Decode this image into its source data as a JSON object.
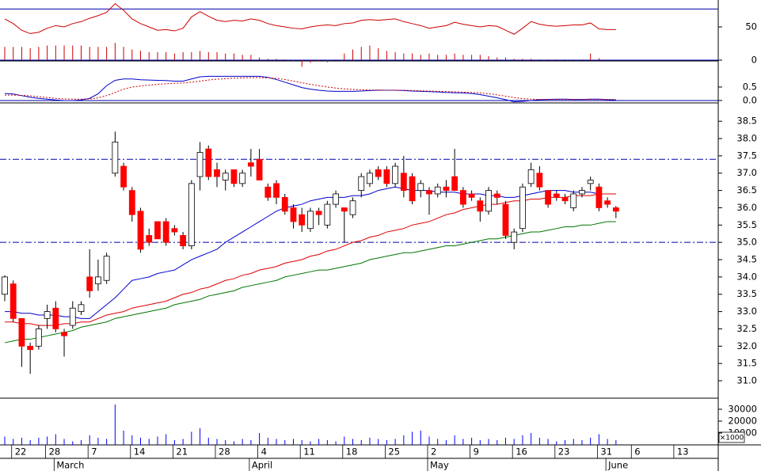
{
  "chart_data": {
    "type": "candlestick",
    "categories": [
      null,
      "22",
      null,
      null,
      null,
      "28",
      null,
      null,
      null,
      null,
      "7",
      null,
      null,
      null,
      null,
      "14",
      null,
      null,
      null,
      null,
      "21",
      null,
      null,
      null,
      null,
      "28",
      null,
      null,
      null,
      null,
      "4",
      null,
      null,
      null,
      null,
      "11",
      null,
      null,
      null,
      null,
      "18",
      null,
      null,
      null,
      null,
      "25",
      null,
      null,
      null,
      null,
      "2",
      null,
      null,
      null,
      null,
      "9",
      null,
      null,
      null,
      null,
      "16",
      null,
      null,
      null,
      null,
      "23",
      null,
      null,
      null,
      null,
      "31",
      null,
      null,
      null,
      "6",
      null,
      null,
      null,
      null,
      "13"
    ],
    "months": [
      null,
      null,
      null,
      null,
      null,
      null,
      "March",
      null,
      null,
      null,
      null,
      null,
      null,
      null,
      null,
      null,
      null,
      null,
      null,
      null,
      null,
      null,
      null,
      null,
      null,
      null,
      null,
      null,
      null,
      "April",
      null,
      null,
      null,
      null,
      null,
      null,
      null,
      null,
      null,
      null,
      null,
      null,
      null,
      null,
      null,
      null,
      null,
      null,
      null,
      null,
      "May",
      null,
      null,
      null,
      null,
      null,
      null,
      null,
      null,
      null,
      null,
      null,
      null,
      null,
      null,
      null,
      null,
      null,
      null,
      null,
      null,
      "June",
      null,
      null,
      null,
      null,
      null,
      null,
      null,
      null
    ],
    "price": {
      "ylim": [
        30.52,
        39.03
      ],
      "yticks": [
        {
          "value": 31,
          "label": "31.0"
        },
        31.5,
        {
          "value": 32,
          "label": "32.0"
        },
        32.5,
        {
          "value": 33,
          "label": "33.0"
        },
        33.5,
        {
          "value": 34,
          "label": "34.0"
        },
        34.5,
        {
          "value": 35,
          "label": "35.0"
        },
        35.5,
        {
          "value": 36,
          "label": "36.0"
        },
        36.5,
        {
          "value": 37,
          "label": "37.0"
        },
        37.5,
        {
          "value": 38,
          "label": "38.0"
        },
        38.5
      ],
      "levels": [
        37.4,
        35.0
      ],
      "up_color": "#ffffff",
      "down_color": "#ff0000",
      "open": [
        33.5,
        33.8,
        32.8,
        32.0,
        32.0,
        32.8,
        33.1,
        32.4,
        32.6,
        33.0,
        34.0,
        33.8,
        33.9,
        37.0,
        37.2,
        36.5,
        35.9,
        35.2,
        35.6,
        35.6,
        35.4,
        35.2,
        34.9,
        36.9,
        37.7,
        37.1,
        36.8,
        37.1,
        36.7,
        37.3,
        37.4,
        36.6,
        36.7,
        36.3,
        36.0,
        35.8,
        35.4,
        35.9,
        35.5,
        36.1,
        36.0,
        35.8,
        36.5,
        36.7,
        37.1,
        37.1,
        36.7,
        37.0,
        36.9,
        36.5,
        36.5,
        36.4,
        36.6,
        36.9,
        36.5,
        36.4,
        36.2,
        35.9,
        36.4,
        36.1,
        35.0,
        35.4,
        36.7,
        37.0,
        36.5,
        36.4,
        36.3,
        36.0,
        36.4,
        36.7,
        36.6,
        36.2,
        36.0,
        null,
        null,
        null,
        null,
        null,
        null,
        null
      ],
      "high": [
        34.05,
        33.9,
        32.8,
        32.1,
        32.6,
        33.2,
        33.3,
        32.5,
        33.3,
        33.3,
        34.8,
        34.5,
        34.7,
        38.2,
        37.3,
        36.6,
        36.0,
        35.4,
        35.6,
        35.7,
        35.5,
        35.3,
        36.8,
        37.9,
        37.8,
        37.3,
        37.1,
        37.1,
        37.1,
        37.7,
        37.7,
        36.7,
        36.8,
        36.4,
        36.1,
        36.0,
        36.0,
        36.0,
        36.2,
        36.5,
        36.0,
        36.3,
        37.0,
        37.1,
        37.2,
        37.2,
        37.3,
        37.5,
        37.0,
        36.8,
        36.6,
        36.7,
        36.8,
        37.7,
        36.6,
        36.5,
        36.3,
        36.6,
        36.5,
        36.2,
        35.4,
        36.7,
        37.3,
        37.2,
        36.5,
        36.5,
        36.4,
        36.5,
        36.6,
        36.9,
        36.7,
        36.3,
        36.05,
        null,
        null,
        null,
        null,
        null,
        null,
        null
      ],
      "low": [
        33.3,
        32.7,
        31.4,
        31.2,
        31.9,
        32.5,
        32.4,
        31.7,
        32.5,
        32.9,
        33.4,
        33.6,
        33.8,
        36.9,
        36.5,
        35.6,
        34.7,
        34.9,
        35.1,
        34.9,
        35.2,
        34.8,
        34.8,
        36.5,
        36.8,
        36.6,
        36.5,
        36.6,
        36.6,
        36.9,
        36.8,
        36.2,
        36.1,
        35.8,
        35.4,
        35.3,
        35.3,
        35.5,
        35.4,
        36.0,
        35.0,
        35.7,
        36.3,
        36.6,
        36.8,
        36.6,
        36.6,
        36.3,
        36.1,
        36.3,
        35.8,
        36.3,
        36.3,
        36.5,
        36.0,
        36.2,
        35.6,
        35.8,
        36.1,
        35.1,
        34.8,
        35.3,
        36.6,
        36.5,
        36.0,
        36.2,
        36.1,
        35.9,
        36.3,
        36.5,
        35.9,
        36.0,
        35.7,
        null,
        null,
        null,
        null,
        null,
        null,
        null
      ],
      "close": [
        34.0,
        32.8,
        32.0,
        31.9,
        32.5,
        33.0,
        32.5,
        32.3,
        33.1,
        33.2,
        33.6,
        34.0,
        34.6,
        37.9,
        36.6,
        35.8,
        34.8,
        35.0,
        35.1,
        35.0,
        35.3,
        34.9,
        36.7,
        37.6,
        36.9,
        36.9,
        37.0,
        36.7,
        37.0,
        37.2,
        36.8,
        36.3,
        36.3,
        35.9,
        35.6,
        35.5,
        35.9,
        35.8,
        36.1,
        36.4,
        35.9,
        36.2,
        36.9,
        37.0,
        36.9,
        36.7,
        37.2,
        36.5,
        36.2,
        36.7,
        36.4,
        36.6,
        36.5,
        36.5,
        36.1,
        36.3,
        35.9,
        36.5,
        36.3,
        35.2,
        35.3,
        36.6,
        37.1,
        36.6,
        36.1,
        36.3,
        36.2,
        36.4,
        36.5,
        36.8,
        36.0,
        36.1,
        35.9,
        null,
        null,
        null,
        null,
        null,
        null,
        null
      ],
      "series": [
        {
          "color": "#0000cc",
          "values": [
            33.0,
            33.0,
            32.95,
            32.95,
            32.9,
            32.9,
            32.9,
            32.85,
            32.85,
            32.8,
            32.8,
            33.0,
            33.2,
            33.4,
            33.65,
            33.9,
            33.95,
            34.0,
            34.1,
            34.15,
            34.2,
            34.35,
            34.5,
            34.6,
            34.7,
            34.8,
            35.0,
            35.15,
            35.3,
            35.45,
            35.6,
            35.75,
            35.9,
            36.0,
            36.05,
            36.1,
            36.2,
            36.25,
            36.3,
            36.3,
            36.3,
            36.35,
            36.35,
            36.4,
            36.5,
            36.55,
            36.6,
            36.55,
            36.5,
            36.5,
            36.5,
            36.45,
            36.45,
            36.45,
            36.4,
            36.4,
            36.4,
            36.35,
            36.35,
            36.3,
            36.3,
            36.35,
            36.4,
            36.45,
            36.5,
            36.5,
            36.5,
            36.45,
            36.45,
            36.45,
            36.4,
            36.4,
            36.4,
            null,
            null,
            null,
            null,
            null,
            null,
            null
          ]
        },
        {
          "color": "#dd0000",
          "values": [
            32.7,
            32.7,
            32.65,
            32.65,
            32.6,
            32.6,
            32.6,
            32.65,
            32.65,
            32.7,
            32.7,
            32.8,
            32.9,
            32.95,
            33.0,
            33.1,
            33.15,
            33.2,
            33.25,
            33.3,
            33.4,
            33.5,
            33.55,
            33.65,
            33.7,
            33.8,
            33.9,
            33.95,
            34.05,
            34.1,
            34.2,
            34.25,
            34.3,
            34.4,
            34.45,
            34.5,
            34.6,
            34.65,
            34.75,
            34.8,
            34.9,
            35.0,
            35.05,
            35.15,
            35.2,
            35.3,
            35.35,
            35.4,
            35.5,
            35.55,
            35.6,
            35.7,
            35.8,
            35.85,
            35.95,
            36.0,
            36.05,
            36.1,
            36.1,
            36.15,
            36.2,
            36.2,
            36.25,
            36.25,
            36.3,
            36.3,
            36.3,
            36.35,
            36.35,
            36.35,
            36.4,
            36.4,
            36.4,
            null,
            null,
            null,
            null,
            null,
            null,
            null
          ]
        },
        {
          "color": "#007700",
          "values": [
            32.1,
            32.15,
            32.2,
            32.2,
            32.25,
            32.3,
            32.35,
            32.4,
            32.45,
            32.55,
            32.6,
            32.65,
            32.7,
            32.8,
            32.85,
            32.9,
            32.95,
            33.0,
            33.05,
            33.1,
            33.2,
            33.25,
            33.3,
            33.35,
            33.45,
            33.5,
            33.55,
            33.6,
            33.7,
            33.75,
            33.8,
            33.85,
            33.9,
            34.0,
            34.05,
            34.1,
            34.15,
            34.2,
            34.2,
            34.25,
            34.3,
            34.35,
            34.4,
            34.5,
            34.55,
            34.6,
            34.65,
            34.7,
            34.7,
            34.75,
            34.8,
            34.85,
            34.9,
            34.9,
            34.95,
            35.0,
            35.05,
            35.1,
            35.1,
            35.15,
            35.2,
            35.25,
            35.3,
            35.3,
            35.35,
            35.4,
            35.45,
            35.45,
            35.5,
            35.5,
            35.55,
            35.6,
            35.6,
            null,
            null,
            null,
            null,
            null,
            null,
            null
          ]
        }
      ]
    },
    "oscillator": {
      "ylim": [
        0,
        90.5
      ],
      "yticks": [
        0,
        50
      ],
      "levels": [
        77
      ],
      "level_color": "#0000aa",
      "line": {
        "color": "#cc0000",
        "values": [
          62,
          55,
          45,
          40,
          42,
          48,
          52,
          50,
          55,
          58,
          63,
          67,
          72,
          85,
          75,
          62,
          55,
          50,
          45,
          46,
          44,
          48,
          65,
          73,
          66,
          60,
          58,
          60,
          59,
          62,
          60,
          55,
          52,
          50,
          48,
          47,
          50,
          52,
          53,
          52,
          55,
          56,
          60,
          61,
          60,
          61,
          62,
          58,
          55,
          52,
          48,
          50,
          52,
          57,
          54,
          52,
          50,
          52,
          51,
          45,
          39,
          48,
          58,
          54,
          52,
          51,
          52,
          53,
          53,
          56,
          47,
          46,
          46,
          null,
          null,
          null,
          null,
          null,
          null,
          null
        ]
      },
      "histogram": {
        "color": "#cc0000",
        "values": [
          20,
          20,
          20,
          18,
          20,
          22,
          22,
          22,
          22,
          22,
          20,
          20,
          20,
          26,
          20,
          16,
          14,
          12,
          12,
          12,
          10,
          12,
          12,
          14,
          12,
          12,
          10,
          10,
          8,
          8,
          4,
          2,
          2,
          1,
          -2,
          -10,
          -4,
          -2,
          -3,
          1,
          10,
          16,
          20,
          22,
          18,
          14,
          12,
          10,
          10,
          8,
          10,
          8,
          8,
          10,
          8,
          8,
          8,
          6,
          4,
          4,
          2,
          2,
          2,
          1,
          1,
          1,
          1,
          1,
          1,
          10,
          3,
          0,
          0,
          null,
          null,
          null,
          null,
          null,
          null,
          null
        ]
      }
    },
    "macd": {
      "ylim": [
        -0.09,
        1.44
      ],
      "yticks": [
        {
          "value": 0,
          "label": "0.0"
        },
        0.5
      ],
      "zero_color": "#0000aa",
      "series": [
        {
          "color": "#0000cc",
          "values": [
            0.26,
            0.24,
            0.18,
            0.12,
            0.08,
            0.05,
            0.02,
            0.0,
            0.0,
            0.02,
            0.08,
            0.25,
            0.55,
            0.75,
            0.8,
            0.8,
            0.77,
            0.76,
            0.75,
            0.74,
            0.72,
            0.72,
            0.8,
            0.88,
            0.9,
            0.9,
            0.9,
            0.9,
            0.9,
            0.9,
            0.9,
            0.86,
            0.78,
            0.68,
            0.58,
            0.48,
            0.42,
            0.38,
            0.35,
            0.34,
            0.34,
            0.34,
            0.35,
            0.37,
            0.38,
            0.38,
            0.38,
            0.37,
            0.35,
            0.34,
            0.33,
            0.32,
            0.3,
            0.29,
            0.28,
            0.26,
            0.22,
            0.16,
            0.1,
            0.03,
            -0.05,
            -0.03,
            0.0,
            0.03,
            0.04,
            0.05,
            0.05,
            0.04,
            0.04,
            0.05,
            0.05,
            0.03,
            0.02,
            null,
            null,
            null,
            null,
            null,
            null,
            null
          ]
        },
        {
          "color": "#cc0000",
          "dashed": true,
          "values": [
            0.2,
            0.2,
            0.19,
            0.17,
            0.14,
            0.11,
            0.08,
            0.06,
            0.05,
            0.05,
            0.06,
            0.1,
            0.18,
            0.3,
            0.42,
            0.5,
            0.54,
            0.57,
            0.6,
            0.62,
            0.64,
            0.65,
            0.68,
            0.72,
            0.76,
            0.79,
            0.81,
            0.83,
            0.84,
            0.85,
            0.85,
            0.84,
            0.82,
            0.78,
            0.72,
            0.66,
            0.6,
            0.55,
            0.5,
            0.46,
            0.43,
            0.41,
            0.4,
            0.39,
            0.39,
            0.38,
            0.38,
            0.38,
            0.37,
            0.36,
            0.35,
            0.34,
            0.33,
            0.32,
            0.31,
            0.3,
            0.28,
            0.25,
            0.21,
            0.16,
            0.11,
            0.07,
            0.05,
            0.04,
            0.04,
            0.04,
            0.04,
            0.04,
            0.04,
            0.04,
            0.04,
            0.04,
            0.04,
            null,
            null,
            null,
            null,
            null,
            null,
            null
          ]
        }
      ]
    },
    "volume": {
      "ylim": [
        0,
        38000
      ],
      "yticks": [
        10000,
        20000,
        30000
      ],
      "unit_label": "×1000",
      "color": "#0000ff",
      "values": [
        7000,
        5000,
        6000,
        4000,
        6000,
        7000,
        9000,
        5000,
        3000,
        4000,
        8000,
        6000,
        5000,
        34000,
        12000,
        8000,
        6000,
        5000,
        7000,
        9000,
        4000,
        5000,
        11000,
        14000,
        6000,
        5000,
        4000,
        3000,
        5000,
        4000,
        10000,
        6000,
        5000,
        4000,
        5000,
        4000,
        3000,
        5000,
        4000,
        3000,
        7000,
        5000,
        4000,
        6000,
        5000,
        4000,
        5000,
        8000,
        11000,
        12000,
        7000,
        5000,
        4000,
        8000,
        5000,
        6000,
        4000,
        5000,
        4000,
        6000,
        5000,
        8000,
        10000,
        6000,
        5000,
        3000,
        4000,
        5000,
        4000,
        6000,
        9000,
        5000,
        4000,
        null,
        null,
        null,
        null,
        null,
        null,
        null
      ]
    }
  }
}
